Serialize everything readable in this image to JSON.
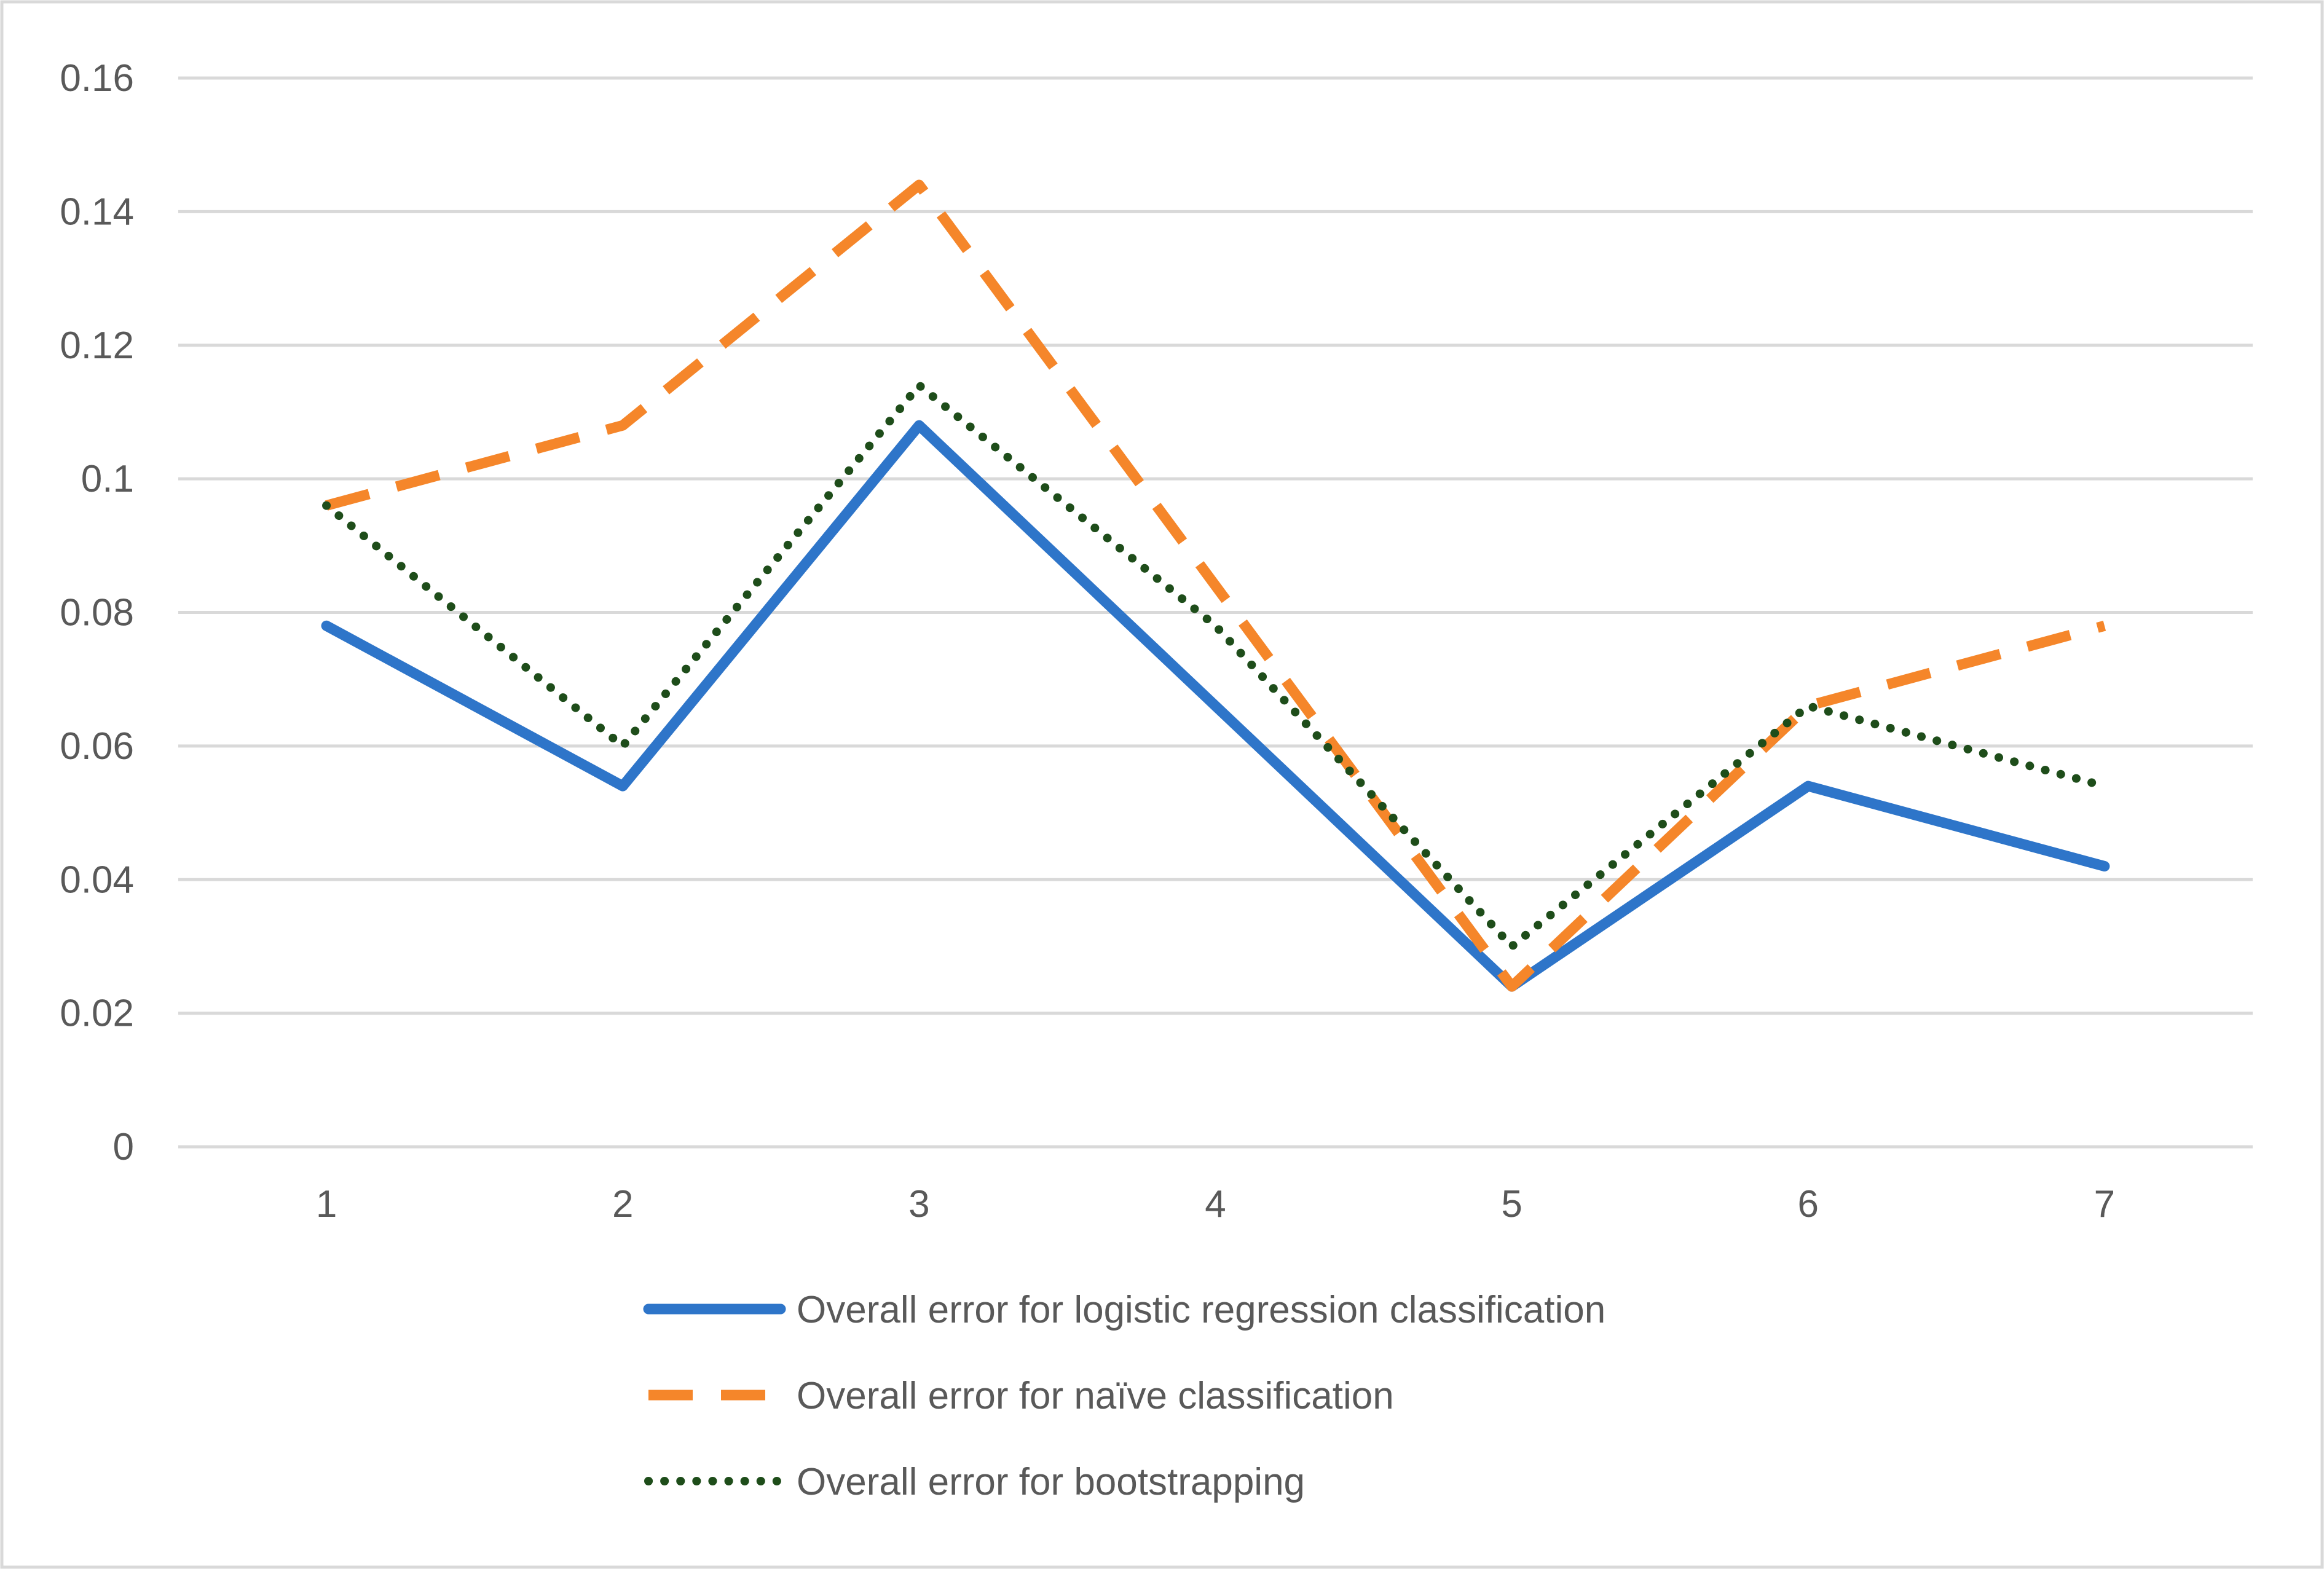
{
  "chart_data": {
    "type": "line",
    "title": "",
    "xlabel": "",
    "ylabel": "",
    "categories": [
      "1",
      "2",
      "3",
      "4",
      "5",
      "6",
      "7"
    ],
    "ylim": [
      0,
      0.16
    ],
    "yticks": [
      "0",
      "0.02",
      "0.04",
      "0.06",
      "0.08",
      "0.1",
      "0.12",
      "0.14",
      "0.16"
    ],
    "ytick_values": [
      0,
      0.02,
      0.04,
      0.06,
      0.08,
      0.1,
      0.12,
      0.14,
      0.16
    ],
    "grid": true,
    "legend_position": "bottom",
    "series": [
      {
        "name": "Overall error for logistic regression classification",
        "values": [
          0.078,
          0.054,
          0.108,
          0.066,
          0.024,
          0.054,
          0.042
        ],
        "color": "#2E75C9",
        "style": "solid"
      },
      {
        "name": "Overall error for naïve classification",
        "values": [
          0.096,
          0.108,
          0.144,
          0.084,
          0.024,
          0.066,
          0.078
        ],
        "color": "#F5862A",
        "style": "dashed"
      },
      {
        "name": "Overall error for bootstrapping",
        "values": [
          0.096,
          0.06,
          0.114,
          0.078,
          0.03,
          0.066,
          0.054
        ],
        "color": "#1E4D1A",
        "style": "dotted"
      }
    ]
  },
  "colors": {
    "grid": "#D9D9D9",
    "frame": "#D9D9D9",
    "text": "#595959"
  }
}
